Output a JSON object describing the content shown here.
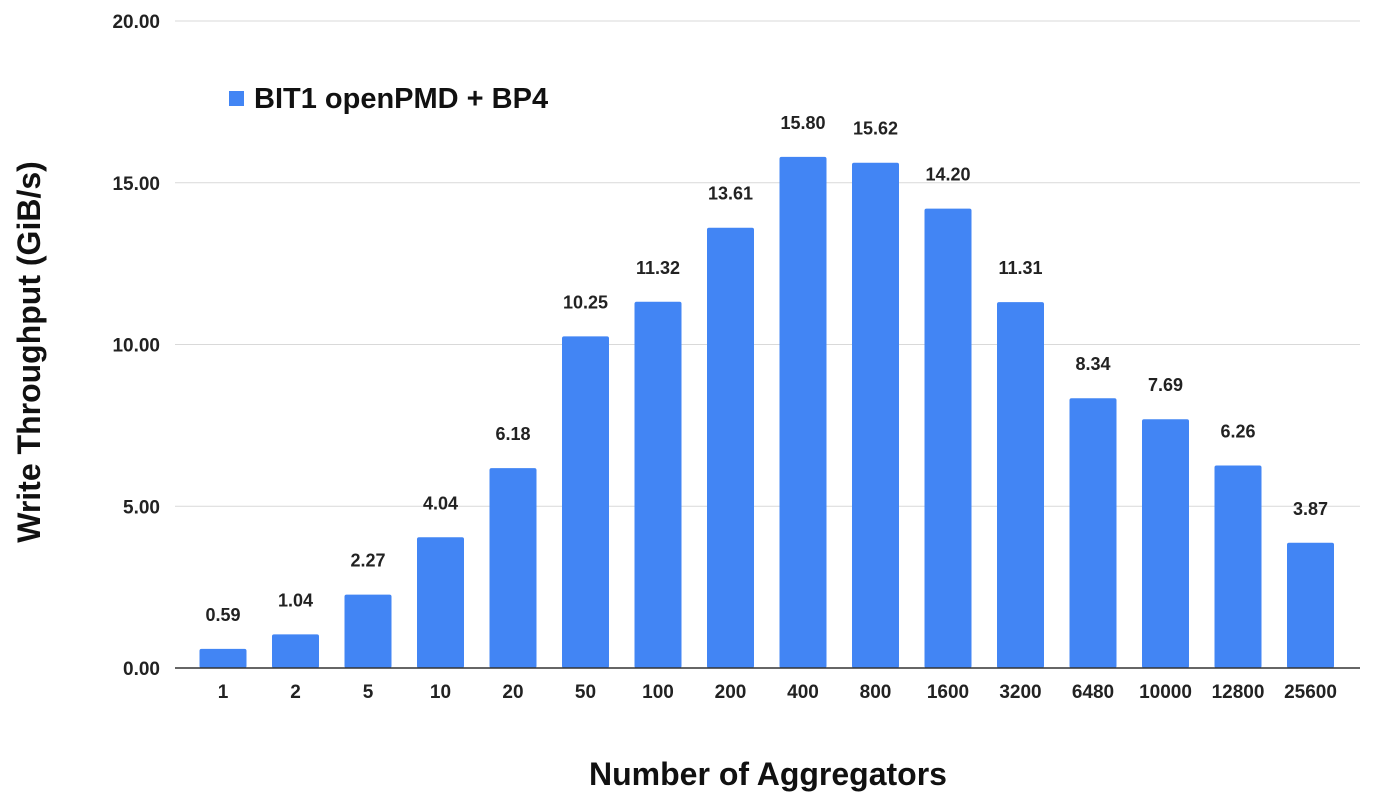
{
  "chart_data": {
    "type": "bar",
    "title": "",
    "xlabel": "Number of Aggregators",
    "ylabel": "Write Throughput (GiB/s)",
    "ylim": [
      0,
      20
    ],
    "yticks": [
      "0.00",
      "5.00",
      "10.00",
      "15.00",
      "20.00"
    ],
    "grid": true,
    "legend_position": "top-left",
    "categories": [
      "1",
      "2",
      "5",
      "10",
      "20",
      "50",
      "100",
      "200",
      "400",
      "800",
      "1600",
      "3200",
      "6480",
      "10000",
      "12800",
      "25600"
    ],
    "series": [
      {
        "name": "BIT1 openPMD + BP4",
        "color": "#4285f4",
        "values": [
          0.59,
          1.04,
          2.27,
          4.04,
          6.18,
          10.25,
          11.32,
          13.61,
          15.8,
          15.62,
          14.2,
          11.31,
          8.34,
          7.69,
          6.26,
          3.87
        ],
        "labels": [
          "0.59",
          "1.04",
          "2.27",
          "4.04",
          "6.18",
          "10.25",
          "11.32",
          "13.61",
          "15.80",
          "15.62",
          "14.20",
          "11.31",
          "8.34",
          "7.69",
          "6.26",
          "3.87"
        ]
      }
    ]
  }
}
